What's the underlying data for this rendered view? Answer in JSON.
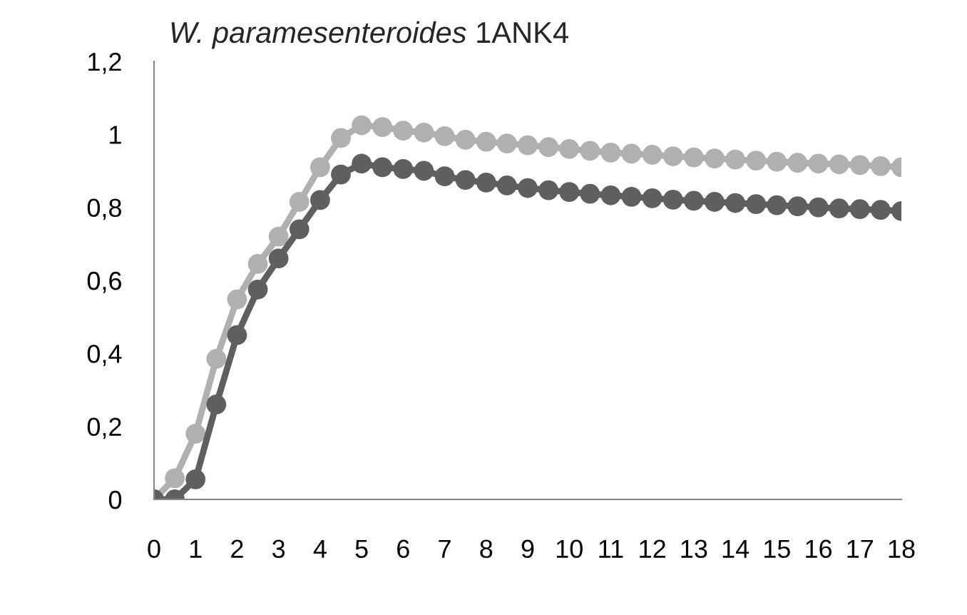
{
  "chart_data": {
    "type": "line",
    "title": "W. paramesenteroides 1ANK4",
    "x": [
      0,
      0.5,
      1,
      1.5,
      2,
      2.5,
      3,
      3.5,
      4,
      4.5,
      5,
      5.5,
      6,
      6.5,
      7,
      7.5,
      8,
      8.5,
      9,
      9.5,
      10,
      10.5,
      11,
      11.5,
      12,
      12.5,
      13,
      13.5,
      14,
      14.5,
      15,
      15.5,
      16,
      16.5,
      17,
      17.5,
      18
    ],
    "series": [
      {
        "color": "#b0b0b0",
        "values": [
          0,
          0.058,
          0.18,
          0.385,
          0.548,
          0.645,
          0.72,
          0.815,
          0.91,
          0.99,
          1.025,
          1.02,
          1.01,
          1.005,
          0.995,
          0.985,
          0.98,
          0.975,
          0.97,
          0.965,
          0.96,
          0.955,
          0.95,
          0.947,
          0.944,
          0.94,
          0.937,
          0.934,
          0.931,
          0.928,
          0.925,
          0.922,
          0.92,
          0.918,
          0.916,
          0.913,
          0.91
        ]
      },
      {
        "color": "#5f5f5f",
        "values": [
          0,
          0,
          0.055,
          0.26,
          0.45,
          0.575,
          0.66,
          0.74,
          0.82,
          0.89,
          0.92,
          0.91,
          0.905,
          0.9,
          0.885,
          0.875,
          0.868,
          0.86,
          0.853,
          0.847,
          0.842,
          0.837,
          0.833,
          0.829,
          0.825,
          0.821,
          0.818,
          0.815,
          0.812,
          0.809,
          0.806,
          0.803,
          0.8,
          0.797,
          0.795,
          0.793,
          0.79
        ]
      }
    ],
    "xlim": [
      0,
      18
    ],
    "xticks": [
      0,
      1,
      2,
      3,
      4,
      5,
      6,
      7,
      8,
      9,
      10,
      11,
      12,
      13,
      14,
      15,
      16,
      17,
      18
    ],
    "ylim": [
      0,
      1.2
    ],
    "yticks": [
      0,
      {
        "value": 0.2,
        "label": "0,2"
      },
      {
        "value": 0.4,
        "label": "0,4"
      },
      {
        "value": 0.6,
        "label": "0,6"
      },
      {
        "value": 0.8,
        "label": "0,8"
      },
      1,
      {
        "value": 1.2,
        "label": "1,2"
      }
    ],
    "marker": "circle",
    "line_style": "solid",
    "grid": false,
    "legend": false
  }
}
